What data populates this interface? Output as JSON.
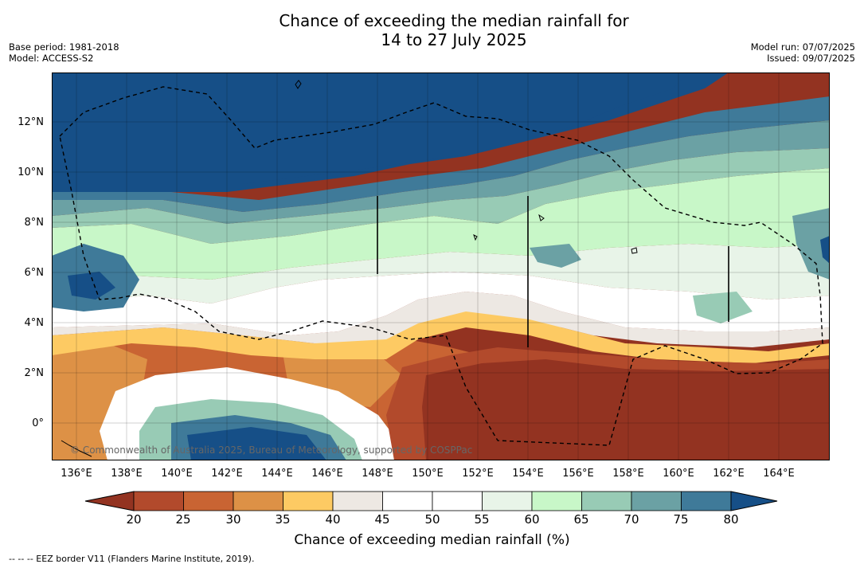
{
  "title_line1": "Chance of exceeding the median rainfall for",
  "title_line2": "14 to 27 July 2025",
  "base_period": "Base period: 1981-2018",
  "model": "Model: ACCESS-S2",
  "model_run": "Model run: 07/07/2025",
  "issued": "Issued: 09/07/2025",
  "copyright": "© Commonwealth of Australia 2025, Bureau of Meteorology, supported by COSPPac",
  "colorbar_title": "Chance of exceeding median rainfall (%)",
  "footer": "--  --  -- EEZ border V11 (Flanders Marine Institute, 2019).",
  "y_ticks": [
    "12°N",
    "10°N",
    "8°N",
    "6°N",
    "4°N",
    "2°N",
    "0°"
  ],
  "x_ticks": [
    "136°E",
    "138°E",
    "140°E",
    "142°E",
    "144°E",
    "146°E",
    "148°E",
    "150°E",
    "152°E",
    "154°E",
    "156°E",
    "158°E",
    "160°E",
    "162°E",
    "164°E"
  ],
  "colorbar_ticks": [
    "20",
    "25",
    "30",
    "35",
    "40",
    "45",
    "50",
    "55",
    "60",
    "65",
    "70",
    "75",
    "80"
  ],
  "colorbar_colors": [
    "#933321",
    "#b24a2c",
    "#c96433",
    "#dd9146",
    "#fdca63",
    "#ede8e3",
    "#ffffff",
    "#ffffff",
    "#e8f4e8",
    "#c8f7c8",
    "#98cbb5",
    "#6ba1a4",
    "#3f7a99",
    "#164f87"
  ]
}
